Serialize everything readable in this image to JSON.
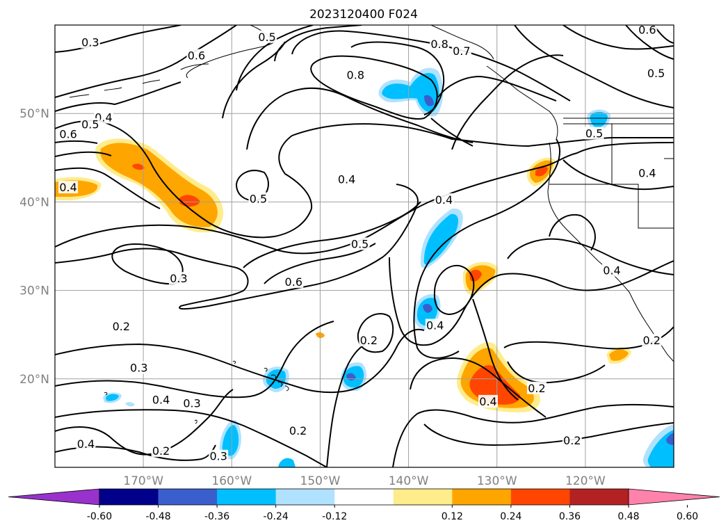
{
  "title": "2023120400 F024",
  "map": {
    "lon_range": [
      -180,
      -110
    ],
    "lat_range": [
      10,
      60
    ],
    "lon_ticks": [
      {
        "value": -170,
        "label": "170°W"
      },
      {
        "value": -160,
        "label": "160°W"
      },
      {
        "value": -150,
        "label": "150°W"
      },
      {
        "value": -140,
        "label": "140°W"
      },
      {
        "value": -130,
        "label": "130°W"
      },
      {
        "value": -120,
        "label": "120°W"
      }
    ],
    "lat_ticks": [
      {
        "value": 20,
        "label": "20°N"
      },
      {
        "value": 30,
        "label": "30°N"
      },
      {
        "value": 40,
        "label": "40°N"
      },
      {
        "value": 50,
        "label": "50°N"
      }
    ],
    "grid": true,
    "gridline_color": "#a0a0a0",
    "coastline_color": "#000000"
  },
  "contours": {
    "color": "#000000",
    "labels": [
      {
        "text": "0.3",
        "lon": -176,
        "lat": 58
      },
      {
        "text": "0.6",
        "lon": -164,
        "lat": 56.5
      },
      {
        "text": "0.5",
        "lon": -156,
        "lat": 58.6
      },
      {
        "text": "0.8",
        "lon": -146,
        "lat": 54.3
      },
      {
        "text": "0.8",
        "lon": -136.5,
        "lat": 57.8
      },
      {
        "text": "0.7",
        "lon": -134,
        "lat": 57
      },
      {
        "text": "0.6",
        "lon": -113,
        "lat": 59.4
      },
      {
        "text": "0.5",
        "lon": -112,
        "lat": 54.5
      },
      {
        "text": "0.4",
        "lon": -174.5,
        "lat": 49.5
      },
      {
        "text": "0.5",
        "lon": -176,
        "lat": 48.7
      },
      {
        "text": "0.6",
        "lon": -178.5,
        "lat": 47.6
      },
      {
        "text": "0.4",
        "lon": -178.5,
        "lat": 41.6
      },
      {
        "text": "0.5",
        "lon": -157,
        "lat": 40.3
      },
      {
        "text": "0.4",
        "lon": -147,
        "lat": 42.5
      },
      {
        "text": "0.4",
        "lon": -136,
        "lat": 40.2
      },
      {
        "text": "0.5",
        "lon": -119,
        "lat": 47.7
      },
      {
        "text": "0.4",
        "lon": -113,
        "lat": 43.2
      },
      {
        "text": "0.5",
        "lon": -145.5,
        "lat": 35.2
      },
      {
        "text": "0.3",
        "lon": -166,
        "lat": 31.3
      },
      {
        "text": "0.6",
        "lon": -153,
        "lat": 30.9
      },
      {
        "text": "0.4",
        "lon": -117,
        "lat": 32.2
      },
      {
        "text": "0.2",
        "lon": -172.5,
        "lat": 25.9
      },
      {
        "text": "0.2",
        "lon": -144.5,
        "lat": 24.3
      },
      {
        "text": "0.4",
        "lon": -137,
        "lat": 26
      },
      {
        "text": "0.2",
        "lon": -112.5,
        "lat": 24.3
      },
      {
        "text": "0.3",
        "lon": -170.5,
        "lat": 21.2
      },
      {
        "text": "0.4",
        "lon": -168,
        "lat": 17.6
      },
      {
        "text": "0.3",
        "lon": -164.5,
        "lat": 17.2
      },
      {
        "text": "0.2",
        "lon": -125.5,
        "lat": 18.9
      },
      {
        "text": "0.4",
        "lon": -131,
        "lat": 17.4
      },
      {
        "text": "0.2",
        "lon": -152.5,
        "lat": 14.1
      },
      {
        "text": "0.4",
        "lon": -176.5,
        "lat": 12.6
      },
      {
        "text": "0.2",
        "lon": -168,
        "lat": 11.8
      },
      {
        "text": "0.3",
        "lon": -161.5,
        "lat": 11.2
      },
      {
        "text": "0.2",
        "lon": -121.5,
        "lat": 13
      }
    ]
  },
  "colorbar": {
    "ticks": [
      "-0.60",
      "-0.48",
      "-0.36",
      "-0.24",
      "-0.12",
      "0.12",
      "0.24",
      "0.36",
      "0.48",
      "0.60"
    ],
    "colors": [
      "#9932cc",
      "#00008b",
      "#3a5fcd",
      "#00bfff",
      "#b0e2ff",
      "#ffffff",
      "#ffec8b",
      "#ffa500",
      "#ff4500",
      "#b22222",
      "#ff82ab"
    ],
    "extend": "both"
  }
}
